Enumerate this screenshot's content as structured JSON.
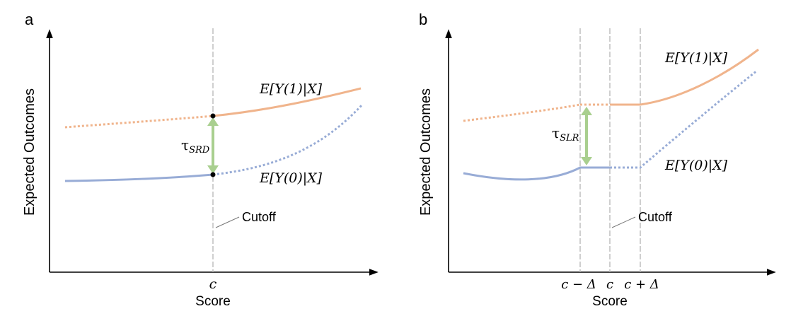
{
  "colors": {
    "treated": "#f0b48c",
    "control": "#98acd6",
    "arrow": "#a9cf8f",
    "guide": "#b5b5b5",
    "axis": "#000000"
  },
  "panel_a": {
    "letter": "a",
    "ylabel": "Expected Outcomes",
    "xlabel": "Score",
    "tick_c": "c",
    "label_y1": "E[Y(1)|X]",
    "label_y0": "E[Y(0)|X]",
    "tau_symbol": "τ",
    "tau_sub": "SRD",
    "cutoff": "Cutoff"
  },
  "panel_b": {
    "letter": "b",
    "ylabel": "Expected Outcomes",
    "xlabel": "Score",
    "tick_left": "c − Δ",
    "tick_c": "c",
    "tick_right": "c + Δ",
    "label_y1": "E[Y(1)|X]",
    "label_y0": "E[Y(0)|X]",
    "tau_symbol": "τ",
    "tau_sub": "SLR",
    "cutoff": "Cutoff"
  }
}
